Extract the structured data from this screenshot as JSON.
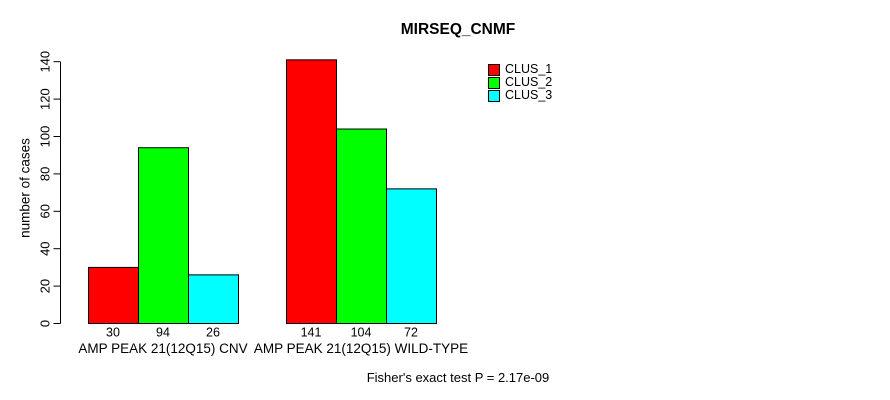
{
  "chart_data": {
    "type": "bar",
    "title": "MIRSEQ_CNMF",
    "ylabel": "number of cases",
    "xlabel": "",
    "ylim": [
      0,
      140
    ],
    "yticks": [
      0,
      20,
      40,
      60,
      80,
      100,
      120,
      140
    ],
    "grid": false,
    "legend_position": "top-right-inside",
    "categories": [
      "AMP PEAK 21(12Q15) CNV",
      "AMP PEAK 21(12Q15) WILD-TYPE"
    ],
    "series": [
      {
        "name": "CLUS_1",
        "color": "#FF0000",
        "values": [
          30,
          141
        ]
      },
      {
        "name": "CLUS_2",
        "color": "#00FF00",
        "values": [
          94,
          104
        ]
      },
      {
        "name": "CLUS_3",
        "color": "#00FFFF",
        "values": [
          26,
          72
        ]
      }
    ],
    "bar_value_labels": [
      [
        "30",
        "94",
        "26"
      ],
      [
        "141",
        "104",
        "72"
      ]
    ],
    "footnote": "Fisher's exact test P = 2.17e-09",
    "axis_color": "#000000",
    "background_color": "#FFFFFF"
  }
}
